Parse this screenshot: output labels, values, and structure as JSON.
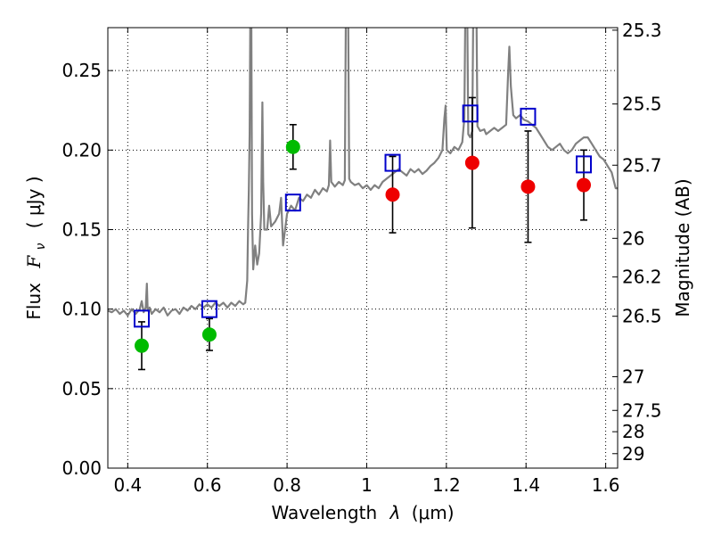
{
  "chart_data": {
    "type": "scatter",
    "title": "",
    "xlabel": "Wavelength  λ (μm)",
    "ylabel": "Flux  F_ν  ( μJy )",
    "ylabel_parts": {
      "prefix": "Flux",
      "symbol": "F",
      "subscript": "ν",
      "unit": "( μJy )"
    },
    "xlabel_parts": {
      "prefix": "Wavelength",
      "symbol": "λ",
      "unit": "(μm)"
    },
    "y2label": "Magnitude (AB)",
    "xlim": [
      0.35,
      1.63
    ],
    "ylim": [
      0.0,
      0.277
    ],
    "grid": true,
    "x_ticks": [
      {
        "value": 0.4,
        "label": "0.4"
      },
      {
        "value": 0.6,
        "label": "0.6"
      },
      {
        "value": 0.8,
        "label": "0.8"
      },
      {
        "value": 1.0,
        "label": "1"
      },
      {
        "value": 1.2,
        "label": "1.2"
      },
      {
        "value": 1.4,
        "label": "1.4"
      },
      {
        "value": 1.6,
        "label": "1.6"
      }
    ],
    "y_ticks": [
      {
        "value": 0.0,
        "label": "0.00"
      },
      {
        "value": 0.05,
        "label": "0.05"
      },
      {
        "value": 0.1,
        "label": "0.10"
      },
      {
        "value": 0.15,
        "label": "0.15"
      },
      {
        "value": 0.2,
        "label": "0.20"
      },
      {
        "value": 0.25,
        "label": "0.25"
      }
    ],
    "y2_ticks": [
      {
        "flux": 0.2754,
        "label": "25.3"
      },
      {
        "flux": 0.229,
        "label": "25.5"
      },
      {
        "flux": 0.1905,
        "label": "25.7"
      },
      {
        "flux": 0.1445,
        "label": "26"
      },
      {
        "flux": 0.1202,
        "label": "26.2"
      },
      {
        "flux": 0.0955,
        "label": "26.5"
      },
      {
        "flux": 0.0575,
        "label": "27"
      },
      {
        "flux": 0.0363,
        "label": "27.5"
      },
      {
        "flux": 0.0229,
        "label": "28"
      },
      {
        "flux": 0.0091,
        "label": "29"
      }
    ],
    "series": [
      {
        "type": "line",
        "color": "#808080",
        "points": [
          [
            0.35,
            0.099
          ],
          [
            0.36,
            0.098
          ],
          [
            0.37,
            0.1
          ],
          [
            0.38,
            0.097
          ],
          [
            0.39,
            0.099
          ],
          [
            0.4,
            0.096
          ],
          [
            0.41,
            0.1
          ],
          [
            0.42,
            0.097
          ],
          [
            0.43,
            0.1
          ],
          [
            0.435,
            0.105
          ],
          [
            0.44,
            0.098
          ],
          [
            0.445,
            0.101
          ],
          [
            0.448,
            0.116
          ],
          [
            0.45,
            0.099
          ],
          [
            0.455,
            0.101
          ],
          [
            0.46,
            0.097
          ],
          [
            0.47,
            0.1
          ],
          [
            0.48,
            0.098
          ],
          [
            0.49,
            0.101
          ],
          [
            0.5,
            0.096
          ],
          [
            0.51,
            0.099
          ],
          [
            0.52,
            0.1
          ],
          [
            0.53,
            0.097
          ],
          [
            0.54,
            0.101
          ],
          [
            0.55,
            0.099
          ],
          [
            0.56,
            0.102
          ],
          [
            0.57,
            0.1
          ],
          [
            0.58,
            0.103
          ],
          [
            0.59,
            0.101
          ],
          [
            0.6,
            0.103
          ],
          [
            0.61,
            0.101
          ],
          [
            0.62,
            0.104
          ],
          [
            0.63,
            0.102
          ],
          [
            0.64,
            0.104
          ],
          [
            0.65,
            0.101
          ],
          [
            0.66,
            0.104
          ],
          [
            0.67,
            0.102
          ],
          [
            0.68,
            0.105
          ],
          [
            0.69,
            0.103
          ],
          [
            0.695,
            0.104
          ],
          [
            0.7,
            0.118
          ],
          [
            0.702,
            0.15
          ],
          [
            0.704,
            0.175
          ],
          [
            0.706,
            0.21
          ],
          [
            0.708,
            0.3
          ],
          [
            0.71,
            0.3
          ],
          [
            0.712,
            0.16
          ],
          [
            0.715,
            0.125
          ],
          [
            0.72,
            0.14
          ],
          [
            0.725,
            0.128
          ],
          [
            0.73,
            0.135
          ],
          [
            0.735,
            0.16
          ],
          [
            0.738,
            0.23
          ],
          [
            0.74,
            0.18
          ],
          [
            0.743,
            0.15
          ],
          [
            0.75,
            0.15
          ],
          [
            0.755,
            0.165
          ],
          [
            0.76,
            0.152
          ],
          [
            0.77,
            0.155
          ],
          [
            0.78,
            0.16
          ],
          [
            0.785,
            0.17
          ],
          [
            0.79,
            0.14
          ],
          [
            0.8,
            0.16
          ],
          [
            0.81,
            0.165
          ],
          [
            0.82,
            0.162
          ],
          [
            0.83,
            0.17
          ],
          [
            0.84,
            0.168
          ],
          [
            0.85,
            0.172
          ],
          [
            0.86,
            0.17
          ],
          [
            0.87,
            0.175
          ],
          [
            0.88,
            0.172
          ],
          [
            0.89,
            0.176
          ],
          [
            0.9,
            0.174
          ],
          [
            0.905,
            0.178
          ],
          [
            0.908,
            0.206
          ],
          [
            0.911,
            0.18
          ],
          [
            0.92,
            0.177
          ],
          [
            0.93,
            0.18
          ],
          [
            0.94,
            0.178
          ],
          [
            0.945,
            0.181
          ],
          [
            0.948,
            0.3
          ],
          [
            0.953,
            0.3
          ],
          [
            0.956,
            0.182
          ],
          [
            0.96,
            0.18
          ],
          [
            0.97,
            0.178
          ],
          [
            0.98,
            0.179
          ],
          [
            0.99,
            0.176
          ],
          [
            1.0,
            0.178
          ],
          [
            1.01,
            0.175
          ],
          [
            1.02,
            0.178
          ],
          [
            1.03,
            0.176
          ],
          [
            1.04,
            0.18
          ],
          [
            1.05,
            0.182
          ],
          [
            1.06,
            0.184
          ],
          [
            1.07,
            0.186
          ],
          [
            1.08,
            0.188
          ],
          [
            1.09,
            0.186
          ],
          [
            1.1,
            0.184
          ],
          [
            1.11,
            0.188
          ],
          [
            1.12,
            0.186
          ],
          [
            1.13,
            0.188
          ],
          [
            1.14,
            0.185
          ],
          [
            1.15,
            0.187
          ],
          [
            1.16,
            0.19
          ],
          [
            1.17,
            0.192
          ],
          [
            1.18,
            0.195
          ],
          [
            1.19,
            0.2
          ],
          [
            1.195,
            0.22
          ],
          [
            1.198,
            0.228
          ],
          [
            1.201,
            0.2
          ],
          [
            1.21,
            0.198
          ],
          [
            1.22,
            0.202
          ],
          [
            1.23,
            0.2
          ],
          [
            1.24,
            0.205
          ],
          [
            1.245,
            0.22
          ],
          [
            1.248,
            0.3
          ],
          [
            1.252,
            0.3
          ],
          [
            1.255,
            0.21
          ],
          [
            1.26,
            0.208
          ],
          [
            1.265,
            0.212
          ],
          [
            1.268,
            0.3
          ],
          [
            1.275,
            0.3
          ],
          [
            1.278,
            0.215
          ],
          [
            1.285,
            0.212
          ],
          [
            1.295,
            0.213
          ],
          [
            1.3,
            0.21
          ],
          [
            1.31,
            0.212
          ],
          [
            1.32,
            0.214
          ],
          [
            1.33,
            0.212
          ],
          [
            1.34,
            0.214
          ],
          [
            1.35,
            0.216
          ],
          [
            1.355,
            0.248
          ],
          [
            1.358,
            0.265
          ],
          [
            1.362,
            0.24
          ],
          [
            1.368,
            0.222
          ],
          [
            1.375,
            0.22
          ],
          [
            1.385,
            0.222
          ],
          [
            1.395,
            0.219
          ],
          [
            1.405,
            0.218
          ],
          [
            1.415,
            0.216
          ],
          [
            1.425,
            0.214
          ],
          [
            1.435,
            0.21
          ],
          [
            1.445,
            0.206
          ],
          [
            1.455,
            0.202
          ],
          [
            1.465,
            0.2
          ],
          [
            1.475,
            0.202
          ],
          [
            1.485,
            0.204
          ],
          [
            1.495,
            0.2
          ],
          [
            1.505,
            0.198
          ],
          [
            1.515,
            0.2
          ],
          [
            1.525,
            0.204
          ],
          [
            1.535,
            0.206
          ],
          [
            1.545,
            0.208
          ],
          [
            1.555,
            0.208
          ],
          [
            1.565,
            0.204
          ],
          [
            1.575,
            0.2
          ],
          [
            1.585,
            0.196
          ],
          [
            1.595,
            0.194
          ],
          [
            1.605,
            0.19
          ],
          [
            1.615,
            0.186
          ],
          [
            1.625,
            0.176
          ],
          [
            1.63,
            0.176
          ]
        ]
      },
      {
        "type": "scatter",
        "marker": "square-open",
        "color": "#0000cc",
        "points": [
          [
            0.435,
            0.094
          ],
          [
            0.605,
            0.1
          ],
          [
            0.815,
            0.167
          ],
          [
            1.065,
            0.192
          ],
          [
            1.26,
            0.223
          ],
          [
            1.405,
            0.221
          ],
          [
            1.545,
            0.191
          ]
        ]
      },
      {
        "type": "scatter",
        "marker": "circle",
        "color": "#00bb00",
        "points": [
          {
            "x": 0.435,
            "y": 0.077,
            "yerr_low": 0.062,
            "yerr_high": 0.092
          },
          {
            "x": 0.605,
            "y": 0.084,
            "yerr_low": 0.074,
            "yerr_high": 0.094
          },
          {
            "x": 0.815,
            "y": 0.202,
            "yerr_low": 0.188,
            "yerr_high": 0.216
          }
        ]
      },
      {
        "type": "scatter",
        "marker": "circle",
        "color": "#ee0000",
        "points": [
          {
            "x": 1.065,
            "y": 0.172,
            "yerr_low": 0.148,
            "yerr_high": 0.196
          },
          {
            "x": 1.265,
            "y": 0.192,
            "yerr_low": 0.151,
            "yerr_high": 0.233
          },
          {
            "x": 1.405,
            "y": 0.177,
            "yerr_low": 0.142,
            "yerr_high": 0.212
          },
          {
            "x": 1.545,
            "y": 0.178,
            "yerr_low": 0.156,
            "yerr_high": 0.2
          }
        ]
      }
    ]
  }
}
